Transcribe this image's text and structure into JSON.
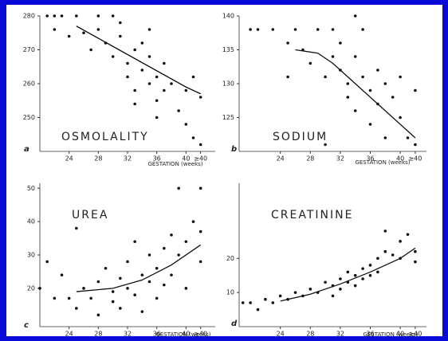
{
  "chart_data": [
    {
      "type": "scatter",
      "panel": "a",
      "title": "OSMOLALITY",
      "x_label": "GESTATION (weeks)",
      "xlim": [
        20,
        44
      ],
      "ylim": [
        240,
        280
      ],
      "xticks": [
        24,
        28,
        32,
        36,
        40,
        {
          "value": 42,
          "label": "≥40"
        }
      ],
      "yticks": [
        250,
        260,
        270,
        280
      ],
      "points": {
        "color": "#111111",
        "x": [
          21,
          22,
          23,
          22,
          24,
          25,
          26,
          27,
          28,
          29,
          30,
          30,
          31,
          32,
          32,
          33,
          33,
          34,
          34,
          35,
          35,
          36,
          36,
          37,
          37,
          38,
          39,
          40,
          40,
          41,
          41,
          42,
          42,
          31,
          28,
          35,
          36,
          33
        ],
        "values": [
          280,
          280,
          280,
          276,
          274,
          280,
          275,
          270,
          276,
          272,
          268,
          280,
          274,
          266,
          262,
          270,
          258,
          264,
          272,
          260,
          268,
          262,
          255,
          258,
          266,
          260,
          252,
          258,
          248,
          262,
          244,
          256,
          242,
          278,
          280,
          276,
          250,
          254
        ]
      },
      "trend": {
        "color": "#111111",
        "x": [
          25,
          30,
          35,
          40,
          42
        ],
        "values": [
          277,
          271,
          265,
          259,
          257
        ]
      }
    },
    {
      "type": "scatter",
      "panel": "b",
      "title": "SODIUM",
      "x_label": "GESTATION (weeks)",
      "xlim": [
        18.5,
        43.5
      ],
      "ylim": [
        120,
        140
      ],
      "xticks": [
        24,
        28,
        32,
        36,
        40,
        {
          "value": 42,
          "label": "≥40"
        }
      ],
      "yticks": [
        125,
        130,
        135,
        140
      ],
      "points": {
        "color": "#111111",
        "x": [
          20,
          21,
          23,
          25,
          26,
          27,
          28,
          29,
          30,
          31,
          31,
          32,
          32,
          33,
          33,
          34,
          34,
          35,
          35,
          36,
          36,
          37,
          37,
          38,
          38,
          39,
          40,
          40,
          41,
          42,
          42,
          30,
          25,
          34
        ],
        "values": [
          138,
          138,
          138,
          136,
          138,
          135,
          133,
          138,
          131,
          138,
          134,
          132,
          136,
          130,
          128,
          134,
          126,
          131,
          138,
          129,
          124,
          132,
          127,
          130,
          122,
          128,
          125,
          131,
          122,
          121,
          129,
          121,
          131,
          140
        ]
      },
      "trend": {
        "color": "#111111",
        "x": [
          26,
          29,
          31,
          33,
          35,
          37,
          39,
          41,
          42
        ],
        "values": [
          135,
          134.5,
          133,
          131,
          129,
          127,
          125,
          123,
          122
        ]
      }
    },
    {
      "type": "scatter",
      "panel": "c",
      "title": "UREA",
      "x_label": "GESTATION (weeks)",
      "xlim": [
        20,
        44
      ],
      "ylim": [
        8.5,
        51.5
      ],
      "xticks": [
        24,
        28,
        32,
        36,
        40,
        {
          "value": 42,
          "label": "≥40"
        }
      ],
      "yticks": [
        20,
        30,
        40,
        50
      ],
      "points": {
        "color": "#111111",
        "x": [
          20,
          21,
          22,
          23,
          24,
          25,
          25,
          26,
          27,
          28,
          28,
          29,
          30,
          30,
          31,
          31,
          32,
          32,
          33,
          33,
          34,
          34,
          35,
          35,
          36,
          36,
          37,
          37,
          38,
          38,
          39,
          39,
          40,
          40,
          41,
          42,
          42,
          42
        ],
        "values": [
          20,
          28,
          17,
          24,
          17,
          38,
          14,
          20,
          17,
          22,
          12,
          26,
          19,
          16,
          23,
          14,
          20,
          28,
          18,
          34,
          24,
          13,
          22,
          30,
          26,
          17,
          32,
          21,
          36,
          24,
          30,
          50,
          34,
          20,
          40,
          37,
          28,
          50
        ]
      },
      "trend": {
        "color": "#111111",
        "x": [
          25,
          30,
          34,
          38,
          42
        ],
        "values": [
          19,
          20,
          22.5,
          27,
          33
        ]
      }
    },
    {
      "type": "scatter",
      "panel": "d",
      "title": "CREATININE",
      "x_label": "GESTATION (weeks)",
      "xlim": [
        18.5,
        43.5
      ],
      "ylim": [
        0,
        42
      ],
      "xticks": [
        24,
        28,
        32,
        36,
        40,
        {
          "value": 42,
          "label": "≥40"
        }
      ],
      "yticks": [
        10,
        20
      ],
      "points": {
        "color": "#111111",
        "x": [
          19,
          20,
          21,
          22,
          23,
          24,
          25,
          26,
          27,
          28,
          29,
          30,
          31,
          31,
          32,
          32,
          33,
          33,
          34,
          34,
          35,
          35,
          36,
          36,
          37,
          37,
          38,
          38,
          39,
          40,
          40,
          41,
          42,
          42
        ],
        "values": [
          7,
          7,
          5,
          8,
          7,
          9,
          8,
          10,
          9,
          11,
          10,
          13,
          12,
          9,
          14,
          11,
          13,
          16,
          15,
          12,
          17,
          14,
          18,
          15,
          20,
          16,
          22,
          28,
          21,
          25,
          20,
          27,
          22,
          19
        ]
      },
      "trend": {
        "color": "#111111",
        "x": [
          24,
          28,
          32,
          36,
          40,
          42
        ],
        "values": [
          7.5,
          9.5,
          12.5,
          16,
          20,
          23
        ]
      }
    }
  ]
}
